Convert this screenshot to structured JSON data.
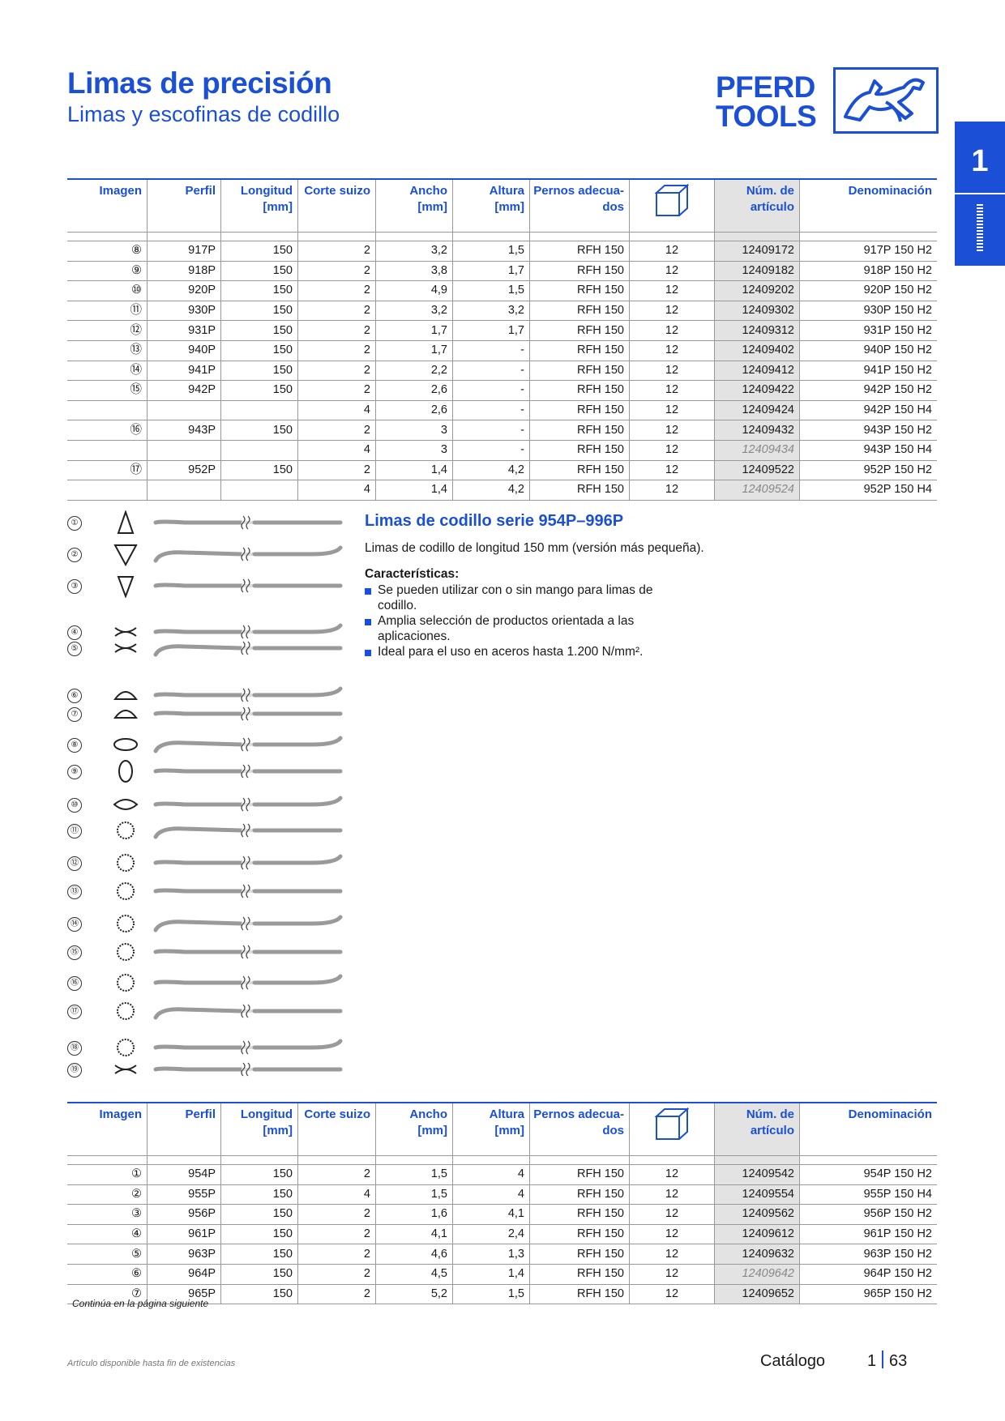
{
  "header": {
    "title": "Limas de precisión",
    "subtitle": "Limas y escofinas de codillo",
    "logo_line1": "PFERD",
    "logo_line2": "TOOLS",
    "chapter": "1"
  },
  "table_headers": {
    "imagen": "Imagen",
    "perfil": "Perfil",
    "longitud": "Longitud",
    "longitud_unit": "[mm]",
    "corte": "Corte suizo",
    "ancho": "Ancho",
    "ancho_unit": "[mm]",
    "altura": "Altura",
    "altura_unit": "[mm]",
    "pernos1": "Pernos adecua-",
    "pernos2": "dos",
    "pkg_icon": "package-box-icon",
    "num1": "Núm. de",
    "num2": "artículo",
    "denominacion": "Denominación"
  },
  "table1": [
    {
      "img": "⑧",
      "perfil": "917P",
      "long": "150",
      "corte": "2",
      "ancho": "3,2",
      "altura": "1,5",
      "pernos": "RFH 150",
      "pkg": "12",
      "art": "12409172",
      "den": "917P 150 H2"
    },
    {
      "img": "⑨",
      "perfil": "918P",
      "long": "150",
      "corte": "2",
      "ancho": "3,8",
      "altura": "1,7",
      "pernos": "RFH 150",
      "pkg": "12",
      "art": "12409182",
      "den": "918P 150 H2"
    },
    {
      "img": "⑩",
      "perfil": "920P",
      "long": "150",
      "corte": "2",
      "ancho": "4,9",
      "altura": "1,5",
      "pernos": "RFH 150",
      "pkg": "12",
      "art": "12409202",
      "den": "920P 150 H2"
    },
    {
      "img": "⑪",
      "perfil": "930P",
      "long": "150",
      "corte": "2",
      "ancho": "3,2",
      "altura": "3,2",
      "pernos": "RFH 150",
      "pkg": "12",
      "art": "12409302",
      "den": "930P 150 H2"
    },
    {
      "img": "⑫",
      "perfil": "931P",
      "long": "150",
      "corte": "2",
      "ancho": "1,7",
      "altura": "1,7",
      "pernos": "RFH 150",
      "pkg": "12",
      "art": "12409312",
      "den": "931P 150 H2"
    },
    {
      "img": "⑬",
      "perfil": "940P",
      "long": "150",
      "corte": "2",
      "ancho": "1,7",
      "altura": "-",
      "pernos": "RFH 150",
      "pkg": "12",
      "art": "12409402",
      "den": "940P 150 H2"
    },
    {
      "img": "⑭",
      "perfil": "941P",
      "long": "150",
      "corte": "2",
      "ancho": "2,2",
      "altura": "-",
      "pernos": "RFH 150",
      "pkg": "12",
      "art": "12409412",
      "den": "941P 150 H2"
    },
    {
      "img": "⑮",
      "perfil": "942P",
      "long": "150",
      "corte": "2",
      "ancho": "2,6",
      "altura": "-",
      "pernos": "RFH 150",
      "pkg": "12",
      "art": "12409422",
      "den": "942P 150 H2"
    },
    {
      "img": "",
      "perfil": "",
      "long": "",
      "corte": "4",
      "ancho": "2,6",
      "altura": "-",
      "pernos": "RFH 150",
      "pkg": "12",
      "art": "12409424",
      "den": "942P 150 H4"
    },
    {
      "img": "⑯",
      "perfil": "943P",
      "long": "150",
      "corte": "2",
      "ancho": "3",
      "altura": "-",
      "pernos": "RFH 150",
      "pkg": "12",
      "art": "12409432",
      "den": "943P 150 H2"
    },
    {
      "img": "",
      "perfil": "",
      "long": "",
      "corte": "4",
      "ancho": "3",
      "altura": "-",
      "pernos": "RFH 150",
      "pkg": "12",
      "art": "12409434",
      "den": "943P 150 H4",
      "italic": true
    },
    {
      "img": "⑰",
      "perfil": "952P",
      "long": "150",
      "corte": "2",
      "ancho": "1,4",
      "altura": "4,2",
      "pernos": "RFH 150",
      "pkg": "12",
      "art": "12409522",
      "den": "952P 150 H2"
    },
    {
      "img": "",
      "perfil": "",
      "long": "",
      "corte": "4",
      "ancho": "1,4",
      "altura": "4,2",
      "pernos": "RFH 150",
      "pkg": "12",
      "art": "12409524",
      "den": "952P 150 H4",
      "italic": true
    }
  ],
  "section": {
    "title": "Limas de codillo serie 954P–996P",
    "desc": "Limas de codillo de longitud 150 mm (versión más pequeña).",
    "features_heading": "Características:",
    "features": [
      "Se pueden utilizar con o sin mango para limas de codillo.",
      "Amplia selección de productos orientada a las aplicaciones.",
      "Ideal para el uso en aceros hasta 1.200 N/mm²."
    ]
  },
  "figures": [
    "①",
    "②",
    "③",
    "④",
    "⑤",
    "⑥",
    "⑦",
    "⑧",
    "⑨",
    "⑩",
    "⑪",
    "⑫",
    "⑬",
    "⑭",
    "⑮",
    "⑯",
    "⑰",
    "⑱",
    "⑲"
  ],
  "table2": [
    {
      "img": "①",
      "perfil": "954P",
      "long": "150",
      "corte": "2",
      "ancho": "1,5",
      "altura": "4",
      "pernos": "RFH 150",
      "pkg": "12",
      "art": "12409542",
      "den": "954P 150 H2"
    },
    {
      "img": "②",
      "perfil": "955P",
      "long": "150",
      "corte": "4",
      "ancho": "1,5",
      "altura": "4",
      "pernos": "RFH 150",
      "pkg": "12",
      "art": "12409554",
      "den": "955P 150 H4"
    },
    {
      "img": "③",
      "perfil": "956P",
      "long": "150",
      "corte": "2",
      "ancho": "1,6",
      "altura": "4,1",
      "pernos": "RFH 150",
      "pkg": "12",
      "art": "12409562",
      "den": "956P 150 H2"
    },
    {
      "img": "④",
      "perfil": "961P",
      "long": "150",
      "corte": "2",
      "ancho": "4,1",
      "altura": "2,4",
      "pernos": "RFH 150",
      "pkg": "12",
      "art": "12409612",
      "den": "961P 150 H2"
    },
    {
      "img": "⑤",
      "perfil": "963P",
      "long": "150",
      "corte": "2",
      "ancho": "4,6",
      "altura": "1,3",
      "pernos": "RFH 150",
      "pkg": "12",
      "art": "12409632",
      "den": "963P 150 H2"
    },
    {
      "img": "⑥",
      "perfil": "964P",
      "long": "150",
      "corte": "2",
      "ancho": "4,5",
      "altura": "1,4",
      "pernos": "RFH 150",
      "pkg": "12",
      "art": "12409642",
      "den": "964P 150 H2",
      "italic": true
    },
    {
      "img": "⑦",
      "perfil": "965P",
      "long": "150",
      "corte": "2",
      "ancho": "5,2",
      "altura": "1,5",
      "pernos": "RFH 150",
      "pkg": "12",
      "art": "12409652",
      "den": "965P 150 H2"
    }
  ],
  "footer": {
    "continued": "Continúa en la página siguiente",
    "availability": "Artículo disponible hasta fin de existencias",
    "catalog": "Catálogo",
    "chapter": "1",
    "page": "63"
  },
  "colors": {
    "brand": "#1a4fd6",
    "highlight": "#e3e3e3"
  }
}
